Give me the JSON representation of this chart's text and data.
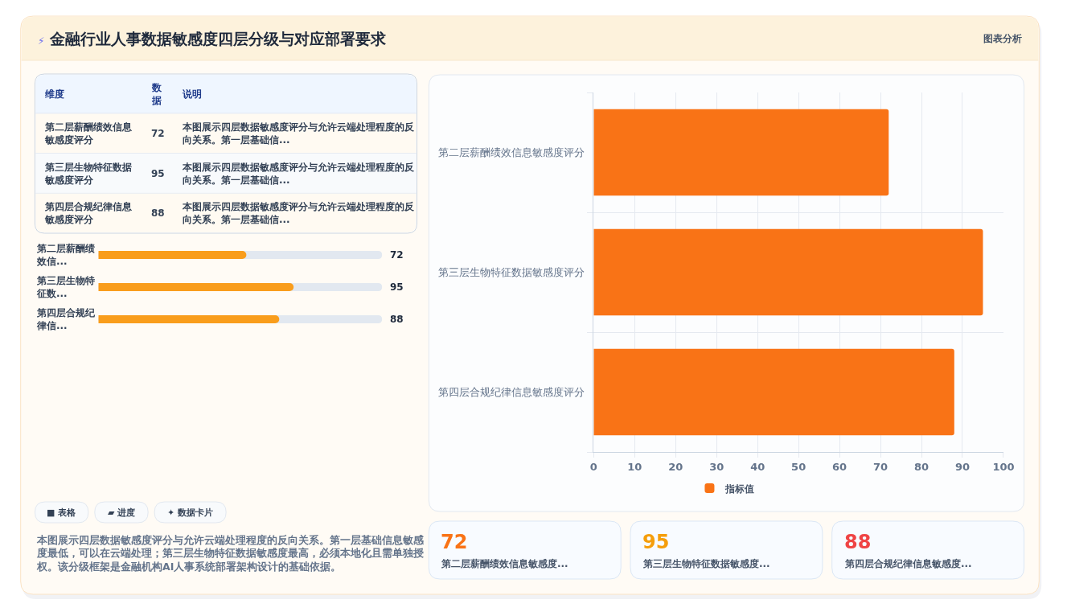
{
  "chart_data": [
    {
      "type": "other",
      "title": "⚡ 金融行业人事数据敏感度四层分级与对应部署要求",
      "annotations": [
        "图表分析"
      ]
    },
    {
      "type": "other",
      "categories": [
        "第二层薪酬绩效信息敏感度评分",
        "第三层生物特征数据敏感度评分",
        "第四层合规纪律信息敏感度评分"
      ],
      "values": [
        72,
        95,
        88
      ],
      "data_labels": true,
      "annotations": [
        "维度",
        "数据",
        "说明",
        "本图展示四层数据敏感度评分与允许云端处理程度的反向关系。第一层基础信...",
        "本图展示四层数据敏感度评分与允许云端处理程度的反向关系。第一层基础信...",
        "本图展示四层数据敏感度评分与允许云端处理程度的反向关系。第一层基础信..."
      ]
    },
    {
      "type": "bar",
      "orientation": "horizontal",
      "categories": [
        "第二层薪酬绩效信...",
        "第三层生物特征数...",
        "第四层合规纪律信..."
      ],
      "values": [
        72,
        95,
        88
      ],
      "color": "#f99d1c",
      "xlim": [
        0,
        138
      ],
      "tick_labels": "y",
      "data_labels": true
    },
    {
      "type": "other",
      "categories": [
        "■ 表格",
        "▰ 进度",
        "✦ 数据卡片"
      ],
      "annotations": [
        "本图展示四层数据敏感度评分与允许云端处理程度的反向关系。第一层基础信息敏感度最低，可以在云端处理；第三层生物特征数据敏感度最高，必须本地化且需单独授权。该分级框架是金融机构AI人事系统部署架构设计的基础依据。"
      ]
    },
    {
      "type": "bar",
      "orientation": "horizontal",
      "categories": [
        "第二层薪酬绩效信息敏感度评分",
        "第三层生物特征数据敏感度评分",
        "第四层合规纪律信息敏感度评分"
      ],
      "series": [
        {
          "name": "指标值",
          "color": "#f97316",
          "values": [
            72,
            95,
            88
          ]
        }
      ],
      "xlim": [
        0,
        100
      ],
      "xticks": [
        0,
        10,
        20,
        30,
        40,
        50,
        60,
        70,
        80,
        90,
        100
      ],
      "grid": true,
      "legend": "bottom"
    },
    {
      "type": "other",
      "categories": [
        "第二层薪酬绩效信息敏感度...",
        "第三层生物特征数据敏感度...",
        "第四层合规纪律信息敏感度..."
      ],
      "values": [
        72,
        95,
        88
      ],
      "data_labels": true
    }
  ]
}
